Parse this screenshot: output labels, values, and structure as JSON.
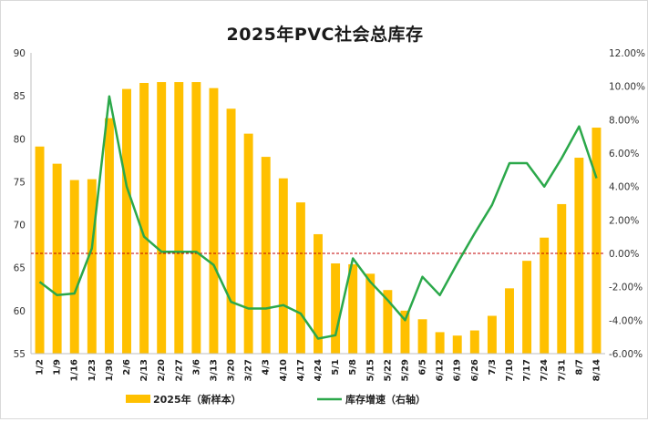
{
  "chart_data": {
    "type": "bar",
    "title": "2025年PVC社会总库存",
    "categories": [
      "1/2",
      "1/9",
      "1/16",
      "1/23",
      "1/30",
      "2/6",
      "2/13",
      "2/20",
      "2/27",
      "3/6",
      "3/13",
      "3/20",
      "3/27",
      "4/3",
      "4/10",
      "4/17",
      "4/24",
      "5/1",
      "5/8",
      "5/15",
      "5/22",
      "5/29",
      "6/5",
      "6/12",
      "6/19",
      "6/26",
      "7/3",
      "7/10",
      "7/17",
      "7/24",
      "7/31",
      "8/7",
      "8/14"
    ],
    "series": [
      {
        "name": "2025年（新样本）",
        "type": "bar",
        "axis": "left",
        "color": "#FFC000",
        "values": [
          79.1,
          77.1,
          75.2,
          75.3,
          82.4,
          85.8,
          86.5,
          86.6,
          86.6,
          86.6,
          85.9,
          83.5,
          80.6,
          77.9,
          75.4,
          72.6,
          68.9,
          65.5,
          65.4,
          64.3,
          62.4,
          60.0,
          59.0,
          57.5,
          57.1,
          57.7,
          59.4,
          62.6,
          65.8,
          68.5,
          72.4,
          77.8,
          81.3
        ]
      },
      {
        "name": "库存增速（右轴）",
        "type": "line",
        "axis": "right",
        "color": "#2BA84A",
        "values": [
          -1.7,
          -2.5,
          -2.4,
          0.3,
          9.4,
          4.0,
          1.0,
          0.1,
          0.1,
          0.1,
          -0.7,
          -2.9,
          -3.3,
          -3.3,
          -3.1,
          -3.6,
          -5.1,
          -4.9,
          -0.3,
          -1.7,
          -2.8,
          -4.0,
          -1.4,
          -2.5,
          -0.6,
          1.2,
          2.9,
          5.4,
          5.4,
          4.0,
          5.7,
          7.6,
          4.5
        ]
      }
    ],
    "y_left": {
      "min": 55,
      "max": 90,
      "ticks": [
        "55",
        "60",
        "65",
        "70",
        "75",
        "80",
        "85",
        "90"
      ]
    },
    "y_right": {
      "min": -6,
      "max": 12,
      "ticks": [
        "-6.00%",
        "-4.00%",
        "-2.00%",
        "0.00%",
        "2.00%",
        "4.00%",
        "6.00%",
        "8.00%",
        "10.00%",
        "12.00%"
      ]
    },
    "zero_line": {
      "value": 0,
      "axis": "right",
      "color": "#C00000",
      "style": "dashed"
    },
    "legend": {
      "position": "bottom"
    },
    "grid": false
  }
}
